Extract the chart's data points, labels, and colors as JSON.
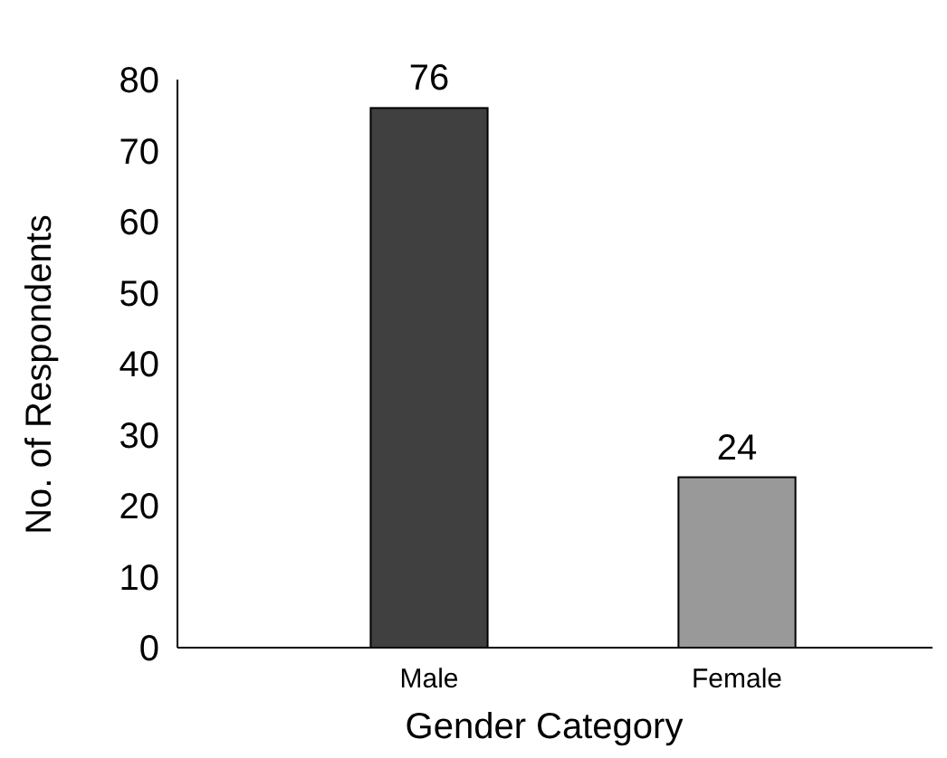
{
  "chart_data": {
    "type": "bar",
    "xlabel": "Gender Category",
    "ylabel": "No. of Respondents",
    "categories": [
      "Male",
      "Female"
    ],
    "values": [
      76,
      24
    ],
    "colors": [
      "#404040",
      "#999999"
    ],
    "ylim": [
      0,
      80
    ],
    "yticks": [
      0,
      10,
      20,
      30,
      40,
      50,
      60,
      70,
      80
    ],
    "data_labels": true
  }
}
